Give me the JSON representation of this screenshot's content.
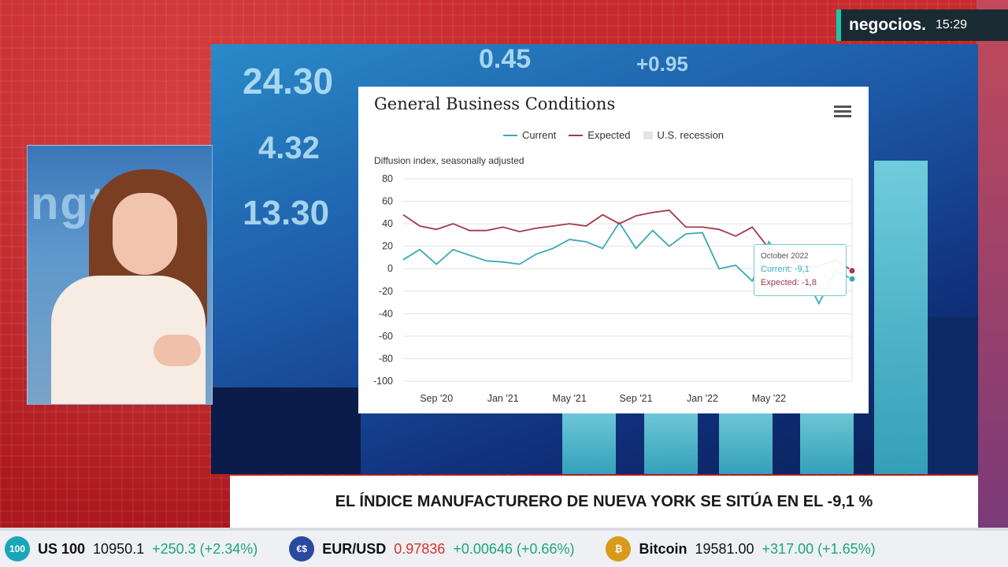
{
  "brand": {
    "logo": "negocios.",
    "time": "15:29"
  },
  "presenter": {
    "wall_text": "ngtoo"
  },
  "screen": {
    "numbers": [
      "24.30",
      "4.32",
      "13.30",
      "0.45",
      "+0.95"
    ]
  },
  "chart_data": {
    "type": "line",
    "title": "General Business Conditions",
    "ylabel": "Diffusion index, seasonally adjusted",
    "legend": [
      "Current",
      "Expected",
      "U.S. recession"
    ],
    "ylim": [
      -100,
      80
    ],
    "yticks": [
      "80",
      "60",
      "40",
      "20",
      "0",
      "-20",
      "-40",
      "-60",
      "-80",
      "-100"
    ],
    "x_ticks": [
      "Sep '20",
      "Jan '21",
      "May '21",
      "Sep '21",
      "Jan '22",
      "May '22"
    ],
    "x_range": [
      "2020-07",
      "2022-10"
    ],
    "series": [
      {
        "name": "Current",
        "color": "#3aaab6",
        "values": [
          [
            "2020-07",
            8
          ],
          [
            "2020-08",
            17
          ],
          [
            "2020-09",
            4
          ],
          [
            "2020-10",
            17
          ],
          [
            "2020-11",
            12
          ],
          [
            "2020-12",
            7
          ],
          [
            "2021-01",
            6
          ],
          [
            "2021-02",
            4
          ],
          [
            "2021-03",
            13
          ],
          [
            "2021-04",
            18
          ],
          [
            "2021-05",
            26
          ],
          [
            "2021-06",
            24
          ],
          [
            "2021-07",
            18
          ],
          [
            "2021-08",
            41
          ],
          [
            "2021-09",
            18
          ],
          [
            "2021-10",
            34
          ],
          [
            "2021-11",
            20
          ],
          [
            "2021-12",
            31
          ],
          [
            "2022-01",
            32
          ],
          [
            "2022-02",
            0
          ],
          [
            "2022-03",
            3
          ],
          [
            "2022-04",
            -11
          ],
          [
            "2022-05",
            24
          ],
          [
            "2022-06",
            2
          ],
          [
            "2022-07",
            -1
          ],
          [
            "2022-08",
            -31
          ],
          [
            "2022-09",
            -2
          ],
          [
            "2022-10",
            -9.1
          ]
        ]
      },
      {
        "name": "Expected",
        "color": "#a33a4a",
        "values": [
          [
            "2020-07",
            48
          ],
          [
            "2020-08",
            38
          ],
          [
            "2020-09",
            35
          ],
          [
            "2020-10",
            40
          ],
          [
            "2020-11",
            34
          ],
          [
            "2020-12",
            34
          ],
          [
            "2021-01",
            37
          ],
          [
            "2021-02",
            33
          ],
          [
            "2021-03",
            36
          ],
          [
            "2021-04",
            38
          ],
          [
            "2021-05",
            40
          ],
          [
            "2021-06",
            38
          ],
          [
            "2021-07",
            48
          ],
          [
            "2021-08",
            40
          ],
          [
            "2021-09",
            47
          ],
          [
            "2021-10",
            50
          ],
          [
            "2021-11",
            52
          ],
          [
            "2021-12",
            37
          ],
          [
            "2022-01",
            37
          ],
          [
            "2022-02",
            35
          ],
          [
            "2022-03",
            29
          ],
          [
            "2022-04",
            37
          ],
          [
            "2022-05",
            18
          ],
          [
            "2022-06",
            12
          ],
          [
            "2022-07",
            2
          ],
          [
            "2022-08",
            2
          ],
          [
            "2022-09",
            8
          ],
          [
            "2022-10",
            -1.8
          ]
        ]
      }
    ],
    "tooltip": {
      "date": "October 2022",
      "current": "Current: -9,1",
      "expected": "Expected: -1,8"
    }
  },
  "headline": "EL ÍNDICE MANUFACTURERO DE NUEVA YORK SE SITÚA EN EL -9,1 %",
  "ticker": [
    {
      "icon": "100",
      "name": "US 100",
      "price": "10950.1",
      "change": "+250.3 (+2.34%)",
      "price_color": "up"
    },
    {
      "icon": "€$",
      "name": "EUR/USD",
      "price": "0.97836",
      "change": "+0.00646 (+0.66%)",
      "price_color": "down"
    },
    {
      "icon": "₿",
      "name": "Bitcoin",
      "price": "19581.00",
      "change": "+317.00 (+1.65%)",
      "price_color": "up"
    }
  ],
  "colors": {
    "accent": "#17c7a9",
    "current": "#3aaab6",
    "expected": "#a33a4a"
  }
}
